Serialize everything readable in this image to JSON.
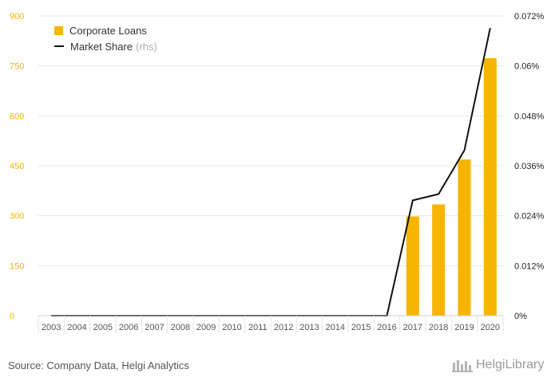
{
  "chart_data": {
    "type": "bar",
    "categories": [
      "2003",
      "2004",
      "2005",
      "2006",
      "2007",
      "2008",
      "2009",
      "2010",
      "2011",
      "2012",
      "2013",
      "2014",
      "2015",
      "2016",
      "2017",
      "2018",
      "2019",
      "2020"
    ],
    "series": [
      {
        "name": "Corporate Loans",
        "type": "bar",
        "axis": "left",
        "color": "#f7b500",
        "values": [
          0,
          0,
          0,
          0,
          0,
          0,
          0,
          0,
          0,
          0,
          0,
          0,
          0,
          0,
          298,
          334,
          469,
          773
        ]
      },
      {
        "name": "Market Share",
        "type": "line",
        "axis": "right",
        "color": "#111111",
        "values": [
          0,
          0,
          0,
          0,
          0,
          0,
          0,
          0,
          0,
          0,
          0,
          0,
          0,
          0,
          0.0277,
          0.0292,
          0.0397,
          0.0691
        ]
      }
    ],
    "left_axis": {
      "ylim": [
        0,
        900
      ],
      "ticks": [
        "0",
        "150",
        "300",
        "450",
        "600",
        "750",
        "900"
      ],
      "tick_values": [
        0,
        150,
        300,
        450,
        600,
        750,
        900
      ],
      "color": "#f7b500"
    },
    "right_axis": {
      "ylim": [
        0,
        0.072
      ],
      "ticks": [
        "0%",
        "0.012%",
        "0.024%",
        "0.036%",
        "0.048%",
        "0.06%",
        "0.072%"
      ],
      "tick_values": [
        0,
        0.012,
        0.024,
        0.036,
        0.048,
        0.06,
        0.072
      ]
    },
    "legend": [
      {
        "label": "Corporate Loans",
        "sub": "",
        "kind": "bar",
        "color": "#f7b500"
      },
      {
        "label": "Market Share",
        "sub": "(rhs)",
        "kind": "line",
        "color": "#111111"
      }
    ],
    "grid": true,
    "legend_position": "top-left"
  },
  "footer": {
    "source": "Source: Company Data, Helgi Analytics",
    "brand": "HelgiLibrary"
  }
}
